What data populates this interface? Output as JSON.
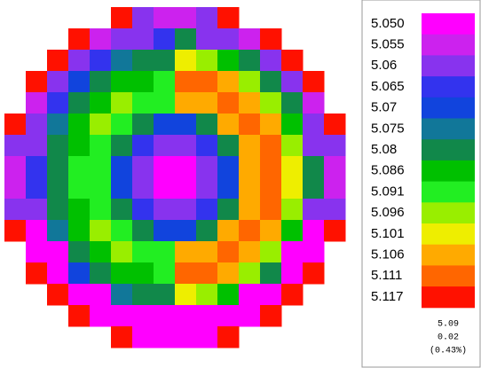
{
  "chart_data": {
    "type": "heatmap",
    "colorbar": {
      "ticks": [
        {
          "value": 5.05,
          "label": "5.050"
        },
        5.055,
        5.06,
        5.065,
        5.07,
        5.075,
        5.08,
        5.086,
        5.091,
        5.096,
        5.101,
        5.106,
        5.111,
        5.117
      ],
      "colors": [
        "#ff00ff",
        "#cc22ee",
        "#8833ee",
        "#3333ee",
        "#1144dd",
        "#117799",
        "#11884a",
        "#00c000",
        "#22ee22",
        "#99ee00",
        "#eeee00",
        "#ffaa00",
        "#ff6600",
        "#ff1100"
      ]
    },
    "stats": {
      "mean": 5.09,
      "sigma": 0.02,
      "uniformity": {
        "value": 0.43,
        "label": "(0.43%)"
      }
    },
    "grid": [
      [
        null,
        null,
        null,
        null,
        null,
        5.117,
        5.06,
        5.055,
        5.055,
        5.06,
        5.117,
        null,
        null,
        null,
        null,
        null
      ],
      [
        null,
        null,
        null,
        5.117,
        5.057,
        5.06,
        5.062,
        5.066,
        5.078,
        5.062,
        5.06,
        5.057,
        5.117,
        null,
        null,
        null
      ],
      [
        null,
        null,
        5.117,
        5.058,
        5.066,
        5.075,
        5.08,
        5.083,
        5.099,
        5.096,
        5.088,
        5.078,
        5.058,
        5.117,
        null,
        null
      ],
      [
        null,
        5.117,
        5.058,
        5.07,
        5.08,
        5.086,
        5.088,
        5.091,
        5.113,
        5.111,
        5.104,
        5.096,
        5.083,
        5.058,
        5.117,
        null
      ],
      [
        null,
        5.057,
        5.066,
        5.08,
        5.086,
        5.094,
        5.091,
        5.091,
        5.106,
        5.108,
        5.111,
        5.106,
        5.096,
        5.078,
        5.057,
        null
      ],
      [
        5.117,
        5.06,
        5.075,
        5.086,
        5.094,
        5.091,
        5.083,
        5.07,
        5.07,
        5.083,
        5.106,
        5.111,
        5.104,
        5.088,
        5.06,
        5.117
      ],
      [
        5.06,
        5.062,
        5.08,
        5.088,
        5.091,
        5.083,
        5.065,
        5.058,
        5.058,
        5.065,
        5.083,
        5.108,
        5.111,
        5.096,
        5.062,
        5.06
      ],
      [
        5.055,
        5.066,
        5.083,
        5.091,
        5.091,
        5.07,
        5.058,
        5.05,
        5.05,
        5.058,
        5.07,
        5.106,
        5.113,
        5.099,
        5.078,
        5.055
      ],
      [
        5.055,
        5.066,
        5.083,
        5.091,
        5.091,
        5.07,
        5.058,
        5.05,
        5.05,
        5.058,
        5.07,
        5.106,
        5.113,
        5.099,
        5.078,
        5.055
      ],
      [
        5.06,
        5.062,
        5.08,
        5.088,
        5.091,
        5.083,
        5.065,
        5.058,
        5.058,
        5.065,
        5.083,
        5.108,
        5.111,
        5.096,
        5.062,
        5.06
      ],
      [
        5.117,
        5.052,
        5.075,
        5.086,
        5.094,
        5.091,
        5.083,
        5.07,
        5.07,
        5.083,
        5.106,
        5.111,
        5.104,
        5.088,
        5.052,
        5.117
      ],
      [
        null,
        5.052,
        5.052,
        5.08,
        5.086,
        5.094,
        5.091,
        5.091,
        5.106,
        5.108,
        5.111,
        5.106,
        5.096,
        5.052,
        5.052,
        null
      ],
      [
        null,
        5.117,
        5.052,
        5.07,
        5.08,
        5.086,
        5.088,
        5.091,
        5.113,
        5.111,
        5.104,
        5.096,
        5.083,
        5.052,
        5.117,
        null
      ],
      [
        null,
        null,
        5.117,
        5.052,
        5.052,
        5.075,
        5.08,
        5.083,
        5.099,
        5.096,
        5.088,
        5.052,
        5.052,
        5.117,
        null,
        null
      ],
      [
        null,
        null,
        null,
        5.117,
        5.052,
        5.052,
        5.052,
        5.052,
        5.052,
        5.052,
        5.052,
        5.052,
        5.117,
        null,
        null,
        null
      ],
      [
        null,
        null,
        null,
        null,
        null,
        5.117,
        5.052,
        5.052,
        5.052,
        5.052,
        5.117,
        null,
        null,
        null,
        null,
        null
      ]
    ]
  }
}
